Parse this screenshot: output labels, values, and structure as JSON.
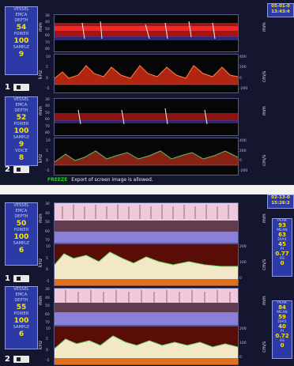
{
  "top": {
    "timestamp": [
      "05-01-0",
      "13:43:4"
    ],
    "status": {
      "freeze": "FREEZE",
      "message": "Export of screen image is allowed."
    },
    "channels": [
      {
        "num": "1",
        "params": [
          {
            "label": "VESSEL",
            "value": ""
          },
          {
            "label": "EMCA",
            "value": ""
          },
          {
            "label": "DEPTH",
            "value": "54"
          },
          {
            "label": "POWER",
            "value": "100"
          },
          {
            "label": "SAMPLE",
            "value": "9"
          }
        ]
      },
      {
        "num": "2",
        "params": [
          {
            "label": "VESSEL",
            "value": ""
          },
          {
            "label": "EMCA",
            "value": ""
          },
          {
            "label": "DEPTH",
            "value": "52"
          },
          {
            "label": "POWER",
            "value": "100"
          },
          {
            "label": "SAMPLE",
            "value": "9"
          },
          {
            "label": "VOICE",
            "value": "8"
          }
        ]
      }
    ],
    "mmode_ticks": [
      "30",
      "40",
      "50",
      "60",
      "70",
      "80"
    ],
    "spectral_ticks": [
      "10",
      "5",
      "0",
      "-5"
    ],
    "spectral_ticks_right": [
      "400",
      "200",
      "0",
      "-200"
    ]
  },
  "bottom": {
    "timestamp": [
      "02-13-0",
      "15:26:2"
    ],
    "channels": [
      {
        "num": "1",
        "params": [
          {
            "label": "VESSEL",
            "value": ""
          },
          {
            "label": "EMCA",
            "value": ""
          },
          {
            "label": "DEPTH",
            "value": "50"
          },
          {
            "label": "POWER",
            "value": "100"
          },
          {
            "label": "SAMPLE",
            "value": "6"
          }
        ],
        "measurements": [
          {
            "label": "PEAK",
            "value": "93"
          },
          {
            "label": "MEAN",
            "value": "63"
          },
          {
            "label": "DIAS",
            "value": "45"
          },
          {
            "label": "PI",
            "value": "0.77"
          },
          {
            "label": "AS",
            "value": "0"
          }
        ]
      },
      {
        "num": "2",
        "params": [
          {
            "label": "VESSEL",
            "value": ""
          },
          {
            "label": "EMCA",
            "value": ""
          },
          {
            "label": "DEPTH",
            "value": "55"
          },
          {
            "label": "POWER",
            "value": "100"
          },
          {
            "label": "SAMPLE",
            "value": "6"
          }
        ],
        "measurements": [
          {
            "label": "PEAK",
            "value": "84"
          },
          {
            "label": "MEAN",
            "value": "59"
          },
          {
            "label": "DIAS",
            "value": "40"
          },
          {
            "label": "PI",
            "value": "0.72"
          },
          {
            "label": "AS",
            "value": "0"
          }
        ]
      }
    ],
    "mmode_ticks": [
      "30",
      "40",
      "50",
      "60",
      "70"
    ],
    "spectral_ticks": [
      "10",
      "5",
      "0",
      "-5"
    ],
    "spectral_ticks_right": [
      "200",
      "100",
      "0"
    ]
  },
  "units": {
    "mm": "mm",
    "khz": "kHz",
    "cms": "cm/s"
  },
  "colors": {
    "panel": "#2c3aa8",
    "value": "#ffe400",
    "freeze": "#20d020"
  },
  "icons": {
    "speaker": "speaker-icon"
  }
}
